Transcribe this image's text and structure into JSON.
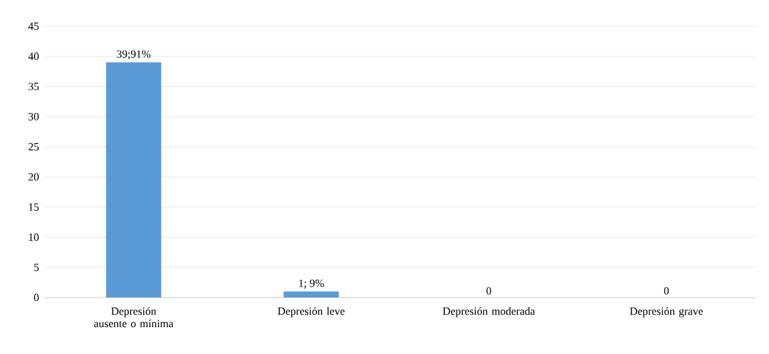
{
  "chart_data": {
    "type": "bar",
    "categories": [
      "Depresión ausente o mínima",
      "Depresión leve",
      "Depresión moderada",
      "Depresión grave"
    ],
    "values": [
      39,
      1,
      0,
      0
    ],
    "value_labels": [
      "39;91%",
      "1; 9%",
      "0",
      "0"
    ],
    "color": "#5b9bd5",
    "ylim": [
      0,
      45
    ],
    "yticks": [
      0,
      5,
      10,
      15,
      20,
      25,
      30,
      35,
      40,
      45
    ],
    "grid": "y"
  }
}
